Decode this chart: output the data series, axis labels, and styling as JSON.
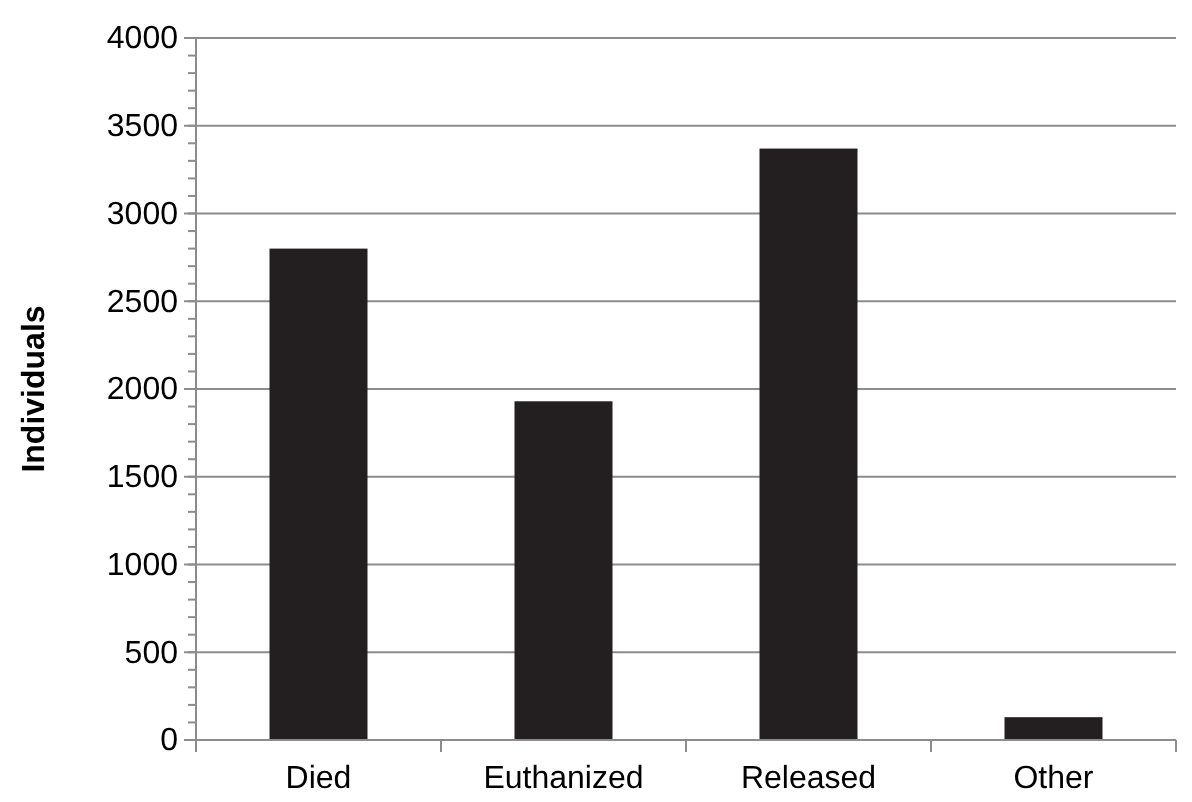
{
  "chart_data": {
    "type": "bar",
    "ylabel": "Individuals",
    "categories": [
      "Died",
      "Euthanized",
      "Released",
      "Other"
    ],
    "values": [
      2800,
      1930,
      3370,
      130
    ],
    "color": "#231f20",
    "ylim": [
      0,
      4000
    ],
    "yticks": [
      0,
      500,
      1000,
      1500,
      2000,
      2500,
      3000,
      3500,
      4000
    ],
    "grid": "y"
  }
}
